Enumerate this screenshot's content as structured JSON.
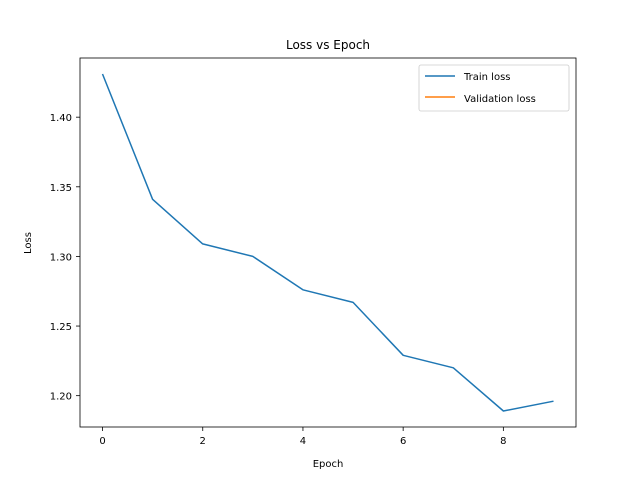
{
  "chart_data": {
    "type": "line",
    "title": "Loss vs Epoch",
    "xlabel": "Epoch",
    "ylabel": "Loss",
    "xlim": [
      -0.45,
      9.45
    ],
    "ylim": [
      1.1775,
      1.4425
    ],
    "xticks": [
      0,
      2,
      4,
      6,
      8
    ],
    "xtick_labels": [
      "0",
      "2",
      "4",
      "6",
      "8"
    ],
    "yticks": [
      1.2,
      1.25,
      1.3,
      1.35,
      1.4
    ],
    "ytick_labels": [
      "1.20",
      "1.25",
      "1.30",
      "1.35",
      "1.40"
    ],
    "legend_position": "top-right",
    "series": [
      {
        "name": "Train loss",
        "color": "#1f77b4",
        "x": [
          0,
          1,
          2,
          3,
          4,
          5,
          6,
          7,
          8,
          9
        ],
        "y": [
          1.431,
          1.341,
          1.309,
          1.3,
          1.276,
          1.267,
          1.229,
          1.22,
          1.189,
          1.196
        ]
      },
      {
        "name": "Validation loss",
        "color": "#ff7f0e",
        "x": [],
        "y": []
      }
    ]
  }
}
